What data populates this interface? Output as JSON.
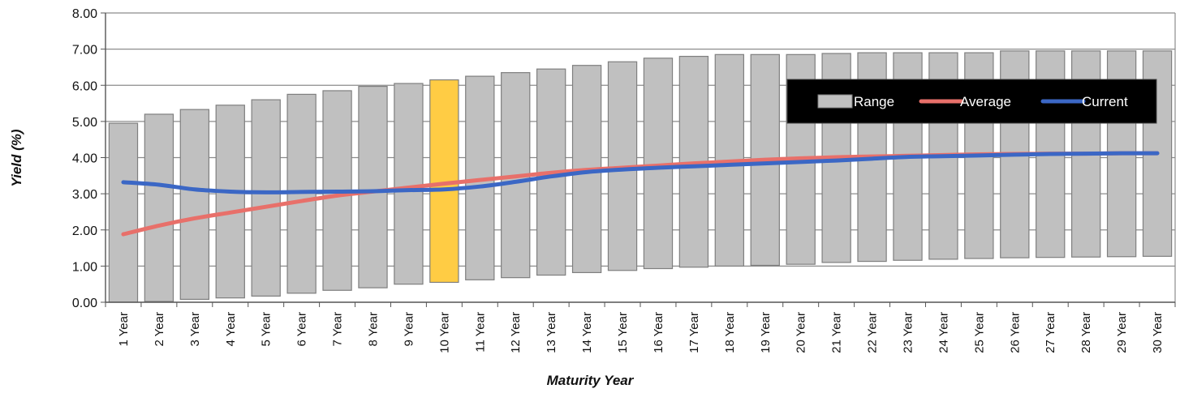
{
  "chart_data": {
    "type": "bar",
    "title": "",
    "xlabel": "Maturity Year",
    "ylabel": "Yield (%)",
    "ylim": [
      0,
      8
    ],
    "yticks": [
      "0.00",
      "1.00",
      "2.00",
      "3.00",
      "4.00",
      "5.00",
      "6.00",
      "7.00",
      "8.00"
    ],
    "grid": true,
    "legend_position": "top-right",
    "categories": [
      "1 Year",
      "2 Year",
      "3 Year",
      "4 Year",
      "5 Year",
      "6 Year",
      "7 Year",
      "8 Year",
      "9 Year",
      "10 Year",
      "11 Year",
      "12 Year",
      "13 Year",
      "14 Year",
      "15 Year",
      "16 Year",
      "17 Year",
      "18 Year",
      "19 Year",
      "20 Year",
      "21 Year",
      "22 Year",
      "23 Year",
      "24 Year",
      "25 Year",
      "26 Year",
      "27 Year",
      "28 Year",
      "29 Year",
      "30 Year"
    ],
    "highlight_category": "10 Year",
    "colors": {
      "range": "#c0c0c0",
      "range_border": "#7f7f7f",
      "highlight": "#ffcc44",
      "average": "#e8706a",
      "current": "#3b67c5",
      "grid": "#8c8c8c",
      "legend_bg": "#000000"
    },
    "series": [
      {
        "name": "Range",
        "type": "range-bar",
        "low": [
          0.0,
          0.02,
          0.08,
          0.12,
          0.17,
          0.25,
          0.33,
          0.4,
          0.5,
          0.55,
          0.62,
          0.68,
          0.75,
          0.82,
          0.88,
          0.93,
          0.97,
          1.0,
          1.02,
          1.05,
          1.1,
          1.13,
          1.16,
          1.19,
          1.21,
          1.23,
          1.24,
          1.25,
          1.26,
          1.27
        ],
        "high": [
          4.95,
          5.2,
          5.33,
          5.45,
          5.6,
          5.75,
          5.85,
          5.97,
          6.05,
          6.15,
          6.25,
          6.35,
          6.45,
          6.55,
          6.65,
          6.75,
          6.8,
          6.85,
          6.85,
          6.85,
          6.88,
          6.9,
          6.9,
          6.9,
          6.9,
          6.95,
          6.95,
          6.95,
          6.95,
          6.95
        ]
      },
      {
        "name": "Average",
        "type": "line",
        "values": [
          1.88,
          2.12,
          2.32,
          2.48,
          2.64,
          2.8,
          2.95,
          3.06,
          3.17,
          3.28,
          3.38,
          3.48,
          3.58,
          3.66,
          3.72,
          3.78,
          3.84,
          3.89,
          3.94,
          3.98,
          4.01,
          4.03,
          4.05,
          4.07,
          4.09,
          4.1,
          4.11,
          4.11,
          4.12,
          4.12
        ]
      },
      {
        "name": "Current",
        "type": "line",
        "values": [
          3.32,
          3.25,
          3.12,
          3.06,
          3.04,
          3.05,
          3.06,
          3.07,
          3.1,
          3.12,
          3.2,
          3.33,
          3.48,
          3.6,
          3.67,
          3.72,
          3.76,
          3.8,
          3.84,
          3.88,
          3.92,
          3.97,
          4.02,
          4.04,
          4.06,
          4.08,
          4.1,
          4.11,
          4.12,
          4.12
        ]
      }
    ]
  }
}
